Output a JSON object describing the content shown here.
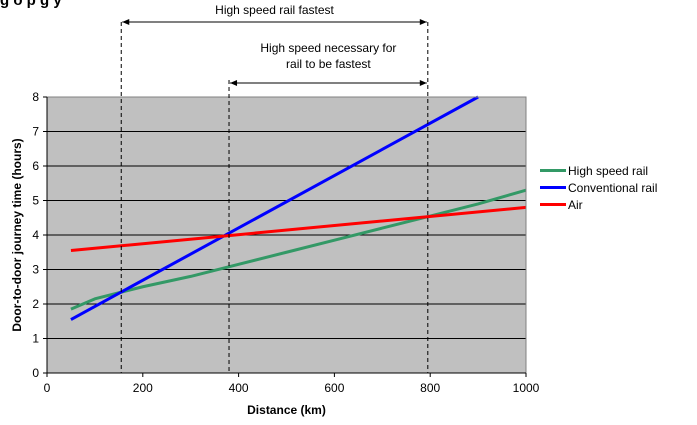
{
  "page": {
    "title": "g  o      p   g  y"
  },
  "annotations": {
    "range1_label": "High speed rail fastest",
    "range2_label_line1": "High speed necessary for",
    "range2_label_line2": "rail to be fastest",
    "range1_km": [
      155,
      795
    ],
    "range2_km": [
      380,
      795
    ]
  },
  "chart_data": {
    "type": "line",
    "title": "",
    "xlabel": "Distance (km)",
    "ylabel": "Door-to-door journey time (hours)",
    "xlim": [
      0,
      1000
    ],
    "ylim": [
      0,
      8
    ],
    "xticks": [
      0,
      200,
      400,
      600,
      800,
      1000
    ],
    "yticks": [
      0,
      1,
      2,
      3,
      4,
      5,
      6,
      7,
      8
    ],
    "plot_area_start_x": 0,
    "grid": "horizontal",
    "background": "#c0c0c0",
    "legend_position": "right",
    "series": [
      {
        "name": "High speed rail",
        "color": "#339966",
        "x": [
          50,
          100,
          200,
          300,
          400,
          500,
          600,
          700,
          800,
          900,
          1000
        ],
        "y": [
          1.85,
          2.15,
          2.5,
          2.8,
          3.15,
          3.5,
          3.85,
          4.2,
          4.55,
          4.9,
          5.3
        ]
      },
      {
        "name": "Conventional rail",
        "color": "#0000ff",
        "x": [
          50,
          900
        ],
        "y": [
          1.55,
          8.0
        ]
      },
      {
        "name": "Air",
        "color": "#ff0000",
        "x": [
          50,
          1000
        ],
        "y": [
          3.55,
          4.8
        ]
      }
    ]
  }
}
